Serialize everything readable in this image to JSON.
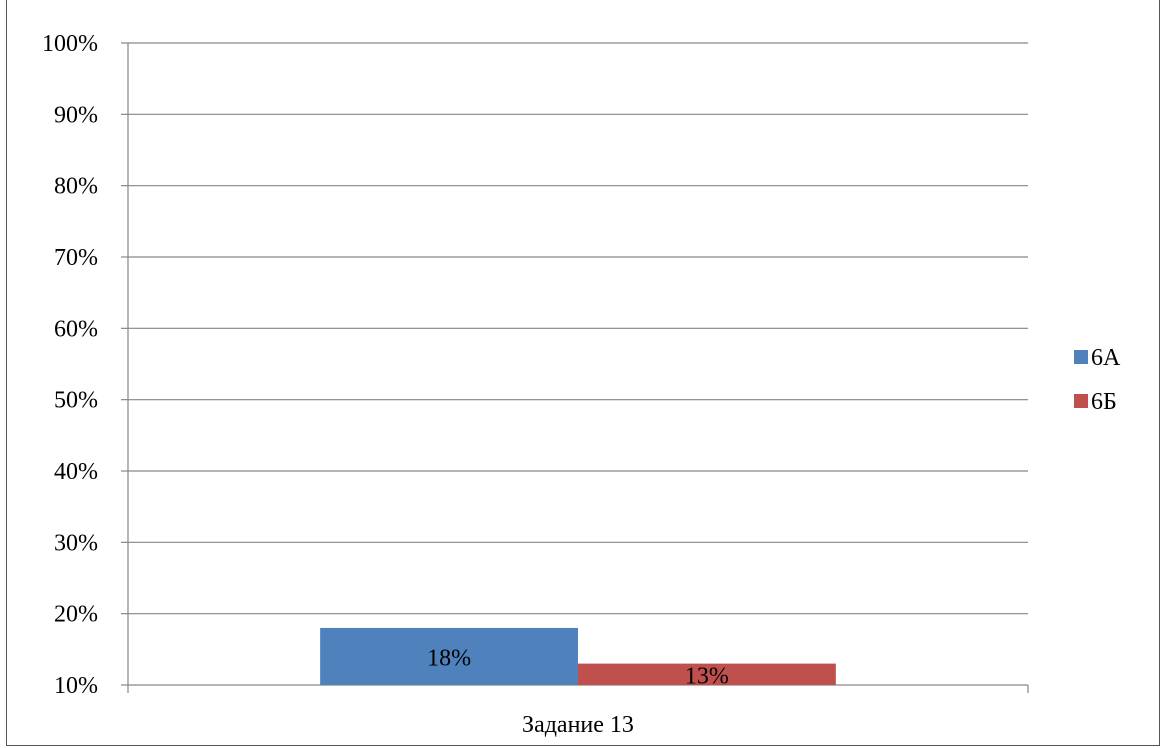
{
  "chart_data": {
    "type": "bar",
    "categories": [
      "Задание 13"
    ],
    "series": [
      {
        "name": "6А",
        "values": [
          0.18
        ],
        "color": "#4f81bd",
        "data_labels": [
          "18%"
        ]
      },
      {
        "name": "6Б",
        "values": [
          0.13
        ],
        "color": "#c0504d",
        "data_labels": [
          "13%"
        ]
      }
    ],
    "ylim": [
      0.1,
      1.0
    ],
    "yticks": [
      0.1,
      0.2,
      0.3,
      0.4,
      0.5,
      0.6,
      0.7,
      0.8,
      0.9,
      1.0
    ],
    "ytick_labels": [
      "10%",
      "20%",
      "30%",
      "40%",
      "50%",
      "60%",
      "70%",
      "80%",
      "90%",
      "100%"
    ],
    "grid": true,
    "legend_position": "right"
  }
}
